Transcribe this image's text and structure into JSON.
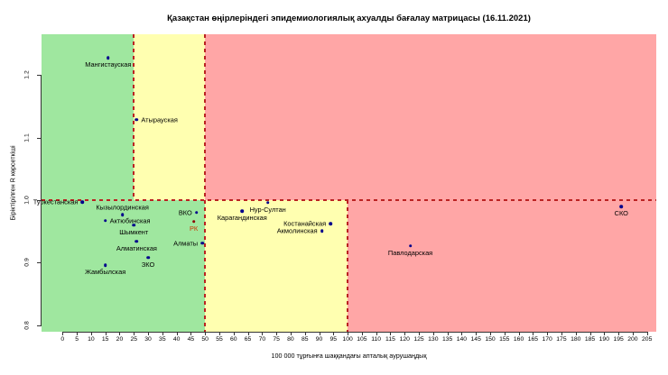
{
  "chart_data": {
    "type": "scatter",
    "title": "Қазақстан өңірлеріндегі эпидемиологиялық ахуалды бағалау матрицасы  (16.11.2021)",
    "xlabel": "100 000 тұрғынға шаққандағы апталық аурушаңдық",
    "ylabel": "Біріктірілген R көрсеткіші",
    "xlim": [
      0,
      205
    ],
    "ylim": [
      0.8,
      1.2
    ],
    "x_ticks": [
      0,
      5,
      10,
      15,
      20,
      25,
      30,
      35,
      40,
      45,
      50,
      55,
      60,
      65,
      70,
      75,
      80,
      85,
      90,
      95,
      100,
      105,
      110,
      115,
      120,
      125,
      130,
      135,
      140,
      145,
      150,
      155,
      160,
      165,
      170,
      175,
      180,
      185,
      190,
      195,
      200,
      205
    ],
    "y_ticks": [
      0.8,
      0.9,
      1.0,
      1.1,
      1.2
    ],
    "colors": {
      "green": "#9fe79f",
      "yellow": "#ffffb0",
      "red": "#ffa6a6",
      "threshold_line": "#bb2222",
      "point_default": "#00008b",
      "point_rk": "#8b0000",
      "label_rk": "#cc3300"
    },
    "zones": [
      {
        "level": "green",
        "x": [
          "min",
          25
        ],
        "r": [
          1.0,
          "max"
        ]
      },
      {
        "level": "yellow",
        "x": [
          25,
          50
        ],
        "r": [
          1.0,
          "max"
        ]
      },
      {
        "level": "red",
        "x": [
          50,
          "max"
        ],
        "r": [
          1.0,
          "max"
        ]
      },
      {
        "level": "green",
        "x": [
          "min",
          50
        ],
        "r": [
          "min",
          1.0
        ]
      },
      {
        "level": "yellow",
        "x": [
          50,
          100
        ],
        "r": [
          "min",
          1.0
        ]
      },
      {
        "level": "red",
        "x": [
          100,
          "max"
        ],
        "r": [
          "min",
          1.0
        ]
      }
    ],
    "threshold_lines": [
      {
        "orient": "h",
        "r": 1.0,
        "x": [
          "min",
          "max"
        ]
      },
      {
        "orient": "v",
        "x": 25,
        "r": [
          1.0,
          "max"
        ]
      },
      {
        "orient": "v",
        "x": 50,
        "r": [
          "min",
          "max"
        ]
      },
      {
        "orient": "v",
        "x": 100,
        "r": [
          "min",
          1.0
        ]
      }
    ],
    "points": [
      {
        "name": "Мангистауская",
        "x": 16,
        "r": 1.228,
        "label_pos": "below"
      },
      {
        "name": "Атырауская",
        "x": 26,
        "r": 1.129,
        "label_pos": "right"
      },
      {
        "name": "Туркестанская",
        "x": 7,
        "r": 0.997,
        "label_pos": "left"
      },
      {
        "name": "Кызылординская",
        "x": 21,
        "r": 0.977,
        "label_pos": "above"
      },
      {
        "name": "Актюбинская",
        "x": 15,
        "r": 0.967,
        "label_pos": "right"
      },
      {
        "name": "Шымкент",
        "x": 25,
        "r": 0.96,
        "label_pos": "below"
      },
      {
        "name": "Алматинская",
        "x": 26,
        "r": 0.934,
        "label_pos": "below"
      },
      {
        "name": "ЗКО",
        "x": 30,
        "r": 0.908,
        "label_pos": "below"
      },
      {
        "name": "Жамбылская",
        "x": 15,
        "r": 0.896,
        "label_pos": "below"
      },
      {
        "name": "ВКО",
        "x": 47,
        "r": 0.98,
        "label_pos": "left"
      },
      {
        "name": "РК",
        "x": 46,
        "r": 0.966,
        "label_pos": "below",
        "special": "rk"
      },
      {
        "name": "Алматы",
        "x": 49,
        "r": 0.931,
        "label_pos": "left"
      },
      {
        "name": "Нур-Султан",
        "x": 72,
        "r": 0.996,
        "label_pos": "below"
      },
      {
        "name": "Карагандинская",
        "x": 63,
        "r": 0.982,
        "label_pos": "below"
      },
      {
        "name": "Костанайская",
        "x": 94,
        "r": 0.962,
        "label_pos": "left"
      },
      {
        "name": "Акмолинская",
        "x": 91,
        "r": 0.951,
        "label_pos": "left"
      },
      {
        "name": "Павлодарская",
        "x": 122,
        "r": 0.927,
        "label_pos": "below"
      },
      {
        "name": "СКО",
        "x": 196,
        "r": 0.99,
        "label_pos": "below"
      }
    ]
  }
}
